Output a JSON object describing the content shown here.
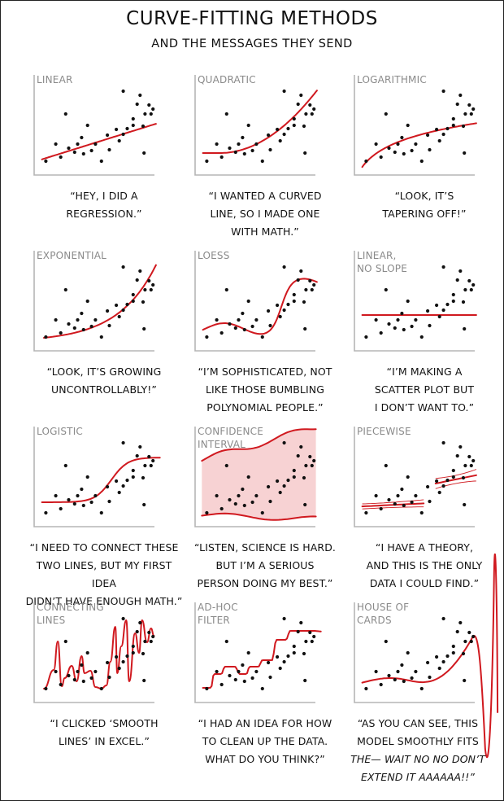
{
  "header": {
    "title": "CURVE-FITTING METHODS",
    "subtitle": "AND THE MESSAGES THEY SEND"
  },
  "colors": {
    "fit": "#d0191f",
    "band": "#f7d2d3",
    "axis": "#b5b5b5",
    "label": "#8a8a8a",
    "points": "#111111"
  },
  "chart_data": [
    {
      "type": "scatter",
      "fit": "linear",
      "title_lines": [
        "LINEAR"
      ],
      "caption_lines": [
        "“HEY, I DID A",
        "REGRESSION.”"
      ]
    },
    {
      "type": "scatter",
      "fit": "quadratic",
      "title_lines": [
        "QUADRATIC"
      ],
      "caption_lines": [
        "“I WANTED A CURVED",
        "LINE, SO I MADE ONE",
        "WITH MATH.”"
      ]
    },
    {
      "type": "scatter",
      "fit": "logarithmic",
      "title_lines": [
        "LOGARITHMIC"
      ],
      "caption_lines": [
        "“LOOK, IT’S",
        "TAPERING OFF!”"
      ]
    },
    {
      "type": "scatter",
      "fit": "exponential",
      "title_lines": [
        "EXPONENTIAL"
      ],
      "caption_lines": [
        "“LOOK, IT’S GROWING",
        "UNCONTROLLABLY!”"
      ]
    },
    {
      "type": "scatter",
      "fit": "loess",
      "title_lines": [
        "LOESS"
      ],
      "caption_lines": [
        "“I’M SOPHISTICATED, NOT",
        "LIKE THOSE BUMBLING",
        "POLYNOMIAL PEOPLE.”"
      ]
    },
    {
      "type": "scatter",
      "fit": "flat",
      "title_lines": [
        "LINEAR,",
        "NO SLOPE"
      ],
      "caption_lines": [
        "“I’M MAKING A",
        "SCATTER PLOT BUT",
        "I DON’T WANT TO.”"
      ]
    },
    {
      "type": "scatter",
      "fit": "logistic",
      "title_lines": [
        "LOGISTIC"
      ],
      "caption_lines": [
        "“I NEED TO CONNECT THESE",
        "TWO LINES, BUT MY FIRST IDEA",
        "DIDN’T HAVE ENOUGH MATH.”"
      ]
    },
    {
      "type": "scatter",
      "fit": "confidence",
      "title_lines": [
        "CONFIDENCE",
        "INTERVAL"
      ],
      "caption_lines": [
        "“LISTEN, SCIENCE IS HARD.",
        "BUT I’M A SERIOUS",
        "PERSON DOING MY BEST.”"
      ]
    },
    {
      "type": "scatter",
      "fit": "piecewise",
      "title_lines": [
        "PIECEWISE"
      ],
      "caption_lines": [
        "“I HAVE A THEORY,",
        "AND THIS IS THE ONLY",
        "DATA I COULD FIND.”"
      ]
    },
    {
      "type": "scatter",
      "fit": "connecting",
      "title_lines": [
        "CONNECTING",
        "LINES"
      ],
      "caption_lines": [
        "“I CLICKED ‘SMOOTH",
        "LINES’ IN EXCEL.”"
      ]
    },
    {
      "type": "scatter",
      "fit": "adhoc",
      "title_lines": [
        "AD-HOC",
        "FILTER"
      ],
      "caption_lines": [
        "“I HAD AN IDEA FOR HOW",
        "TO CLEAN UP THE DATA.",
        "WHAT DO YOU THINK?”"
      ]
    },
    {
      "type": "scatter",
      "fit": "houseofcards",
      "title_lines": [
        "HOUSE OF",
        "CARDS"
      ],
      "caption_lines": [
        "“AS YOU CAN SEE, THIS",
        "MODEL SMOOTHLY FITS",
        "THE— WAIT NO NO DON’T",
        "EXTEND IT AAAAAA!!”"
      ]
    }
  ]
}
